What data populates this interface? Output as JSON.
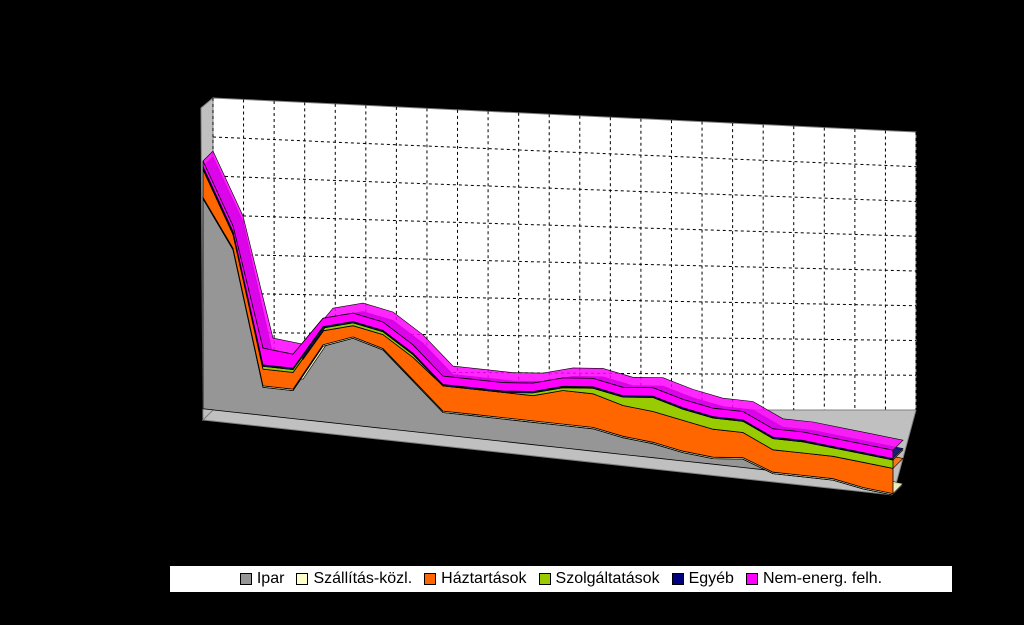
{
  "chart_data": {
    "type": "area",
    "stacked": true,
    "three_d": true,
    "grid": true,
    "legend_position": "bottom",
    "title": "",
    "xlabel": "",
    "ylabel": "",
    "ylim": [
      0,
      100
    ],
    "series": [
      {
        "name": "Ipar",
        "color": "#969696",
        "values": [
          75,
          58,
          10,
          10,
          27,
          31,
          28,
          18,
          8,
          8,
          8,
          8,
          8,
          8,
          6,
          5,
          3,
          2,
          3,
          -1,
          -1,
          -1,
          -3,
          -4
        ]
      },
      {
        "name": "Szállítás-közl.",
        "color": "#ffffcc",
        "values": [
          0.5,
          0.5,
          0.5,
          0.5,
          0.5,
          0.5,
          0.5,
          0.5,
          0.5,
          0.5,
          0.5,
          0.5,
          0.5,
          0.5,
          0.5,
          0.5,
          0.5,
          0.5,
          0.5,
          0.5,
          0.5,
          0.5,
          0.5,
          0.5
        ]
      },
      {
        "name": "Háztartások",
        "color": "#ff6600",
        "values": [
          10,
          5,
          6,
          6,
          5,
          4,
          5,
          8,
          9,
          9,
          9,
          9,
          12,
          12,
          11,
          11,
          11,
          10,
          9,
          8,
          8,
          8,
          9,
          9
        ]
      },
      {
        "name": "Szolgáltatások",
        "color": "#99cc00",
        "values": [
          0,
          0,
          1,
          1,
          1,
          1,
          1,
          1,
          0,
          0,
          0,
          1,
          1,
          2,
          3,
          5,
          4,
          4,
          4,
          4,
          4,
          3,
          3,
          3
        ]
      },
      {
        "name": "Egyéb",
        "color": "#000080",
        "values": [
          1,
          1,
          0.5,
          0.5,
          0.5,
          0.5,
          0.5,
          0.5,
          0.5,
          0.5,
          0.5,
          0.5,
          0.5,
          0.5,
          0.5,
          0.5,
          0.5,
          0.5,
          0.5,
          0.5,
          0.5,
          0.5,
          0.5,
          0.5
        ]
      },
      {
        "name": "Nem-energ. felh.",
        "color": "#ff00ff",
        "values": [
          2,
          2,
          6,
          5,
          3,
          3,
          3,
          3,
          3,
          3,
          3,
          3,
          3,
          3,
          3,
          3,
          3,
          3,
          3,
          3,
          3,
          3,
          3,
          3
        ]
      }
    ]
  }
}
